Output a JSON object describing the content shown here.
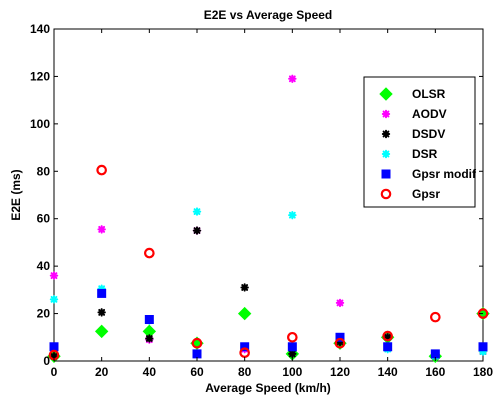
{
  "chart_data": {
    "type": "scatter",
    "title": "E2E vs Average Speed",
    "xlabel": "Average Speed (km/h)",
    "ylabel": "E2E (ms)",
    "xlim": [
      0,
      180
    ],
    "ylim": [
      0,
      140
    ],
    "xticks": [
      0,
      20,
      40,
      60,
      80,
      100,
      120,
      140,
      160,
      180
    ],
    "yticks": [
      0,
      20,
      40,
      60,
      80,
      100,
      120,
      140
    ],
    "grid": false,
    "legend_position": "top-right",
    "series": [
      {
        "name": "OLSR",
        "marker": "diamond",
        "color": "#00ff00",
        "points": [
          [
            0,
            2
          ],
          [
            20,
            12.5
          ],
          [
            40,
            12.5
          ],
          [
            60,
            7.5
          ],
          [
            80,
            20
          ],
          [
            100,
            3
          ],
          [
            120,
            7.5
          ],
          [
            140,
            10
          ],
          [
            160,
            2
          ],
          [
            180,
            20
          ]
        ]
      },
      {
        "name": "AODV",
        "marker": "asterisk",
        "color": "#ff00ff",
        "points": [
          [
            0,
            36
          ],
          [
            20,
            55.5
          ],
          [
            40,
            9
          ],
          [
            60,
            55
          ],
          [
            80,
            5
          ],
          [
            100,
            119
          ],
          [
            120,
            24.5
          ],
          [
            140,
            10
          ],
          [
            160,
            2
          ],
          [
            180,
            4
          ]
        ]
      },
      {
        "name": "DSDV",
        "marker": "asterisk",
        "color": "#000000",
        "points": [
          [
            0,
            2
          ],
          [
            20,
            20.5
          ],
          [
            40,
            9.5
          ],
          [
            60,
            55
          ],
          [
            80,
            31
          ],
          [
            100,
            3
          ],
          [
            120,
            8
          ],
          [
            140,
            10
          ],
          [
            160,
            2
          ],
          [
            180,
            4
          ]
        ]
      },
      {
        "name": "DSR",
        "marker": "asterisk",
        "color": "#00ffff",
        "points": [
          [
            0,
            26
          ],
          [
            20,
            30.5
          ],
          [
            40,
            17
          ],
          [
            60,
            63
          ],
          [
            80,
            6
          ],
          [
            100,
            61.5
          ],
          [
            120,
            10
          ],
          [
            140,
            5
          ],
          [
            160,
            2
          ],
          [
            180,
            4
          ]
        ]
      },
      {
        "name": "Gpsr modif",
        "marker": "square",
        "color": "#0000ff",
        "points": [
          [
            0,
            6
          ],
          [
            20,
            28.5
          ],
          [
            40,
            17.5
          ],
          [
            60,
            3
          ],
          [
            80,
            6
          ],
          [
            100,
            6
          ],
          [
            120,
            10
          ],
          [
            140,
            6
          ],
          [
            160,
            3
          ],
          [
            180,
            6
          ]
        ]
      },
      {
        "name": "Gpsr",
        "marker": "circle",
        "color": "#ff0000",
        "points": [
          [
            0,
            2.5
          ],
          [
            20,
            80.5
          ],
          [
            40,
            45.5
          ],
          [
            60,
            7.5
          ],
          [
            80,
            3.5
          ],
          [
            100,
            10
          ],
          [
            120,
            7.5
          ],
          [
            140,
            10.5
          ],
          [
            160,
            18.5
          ],
          [
            180,
            20
          ]
        ]
      }
    ]
  }
}
